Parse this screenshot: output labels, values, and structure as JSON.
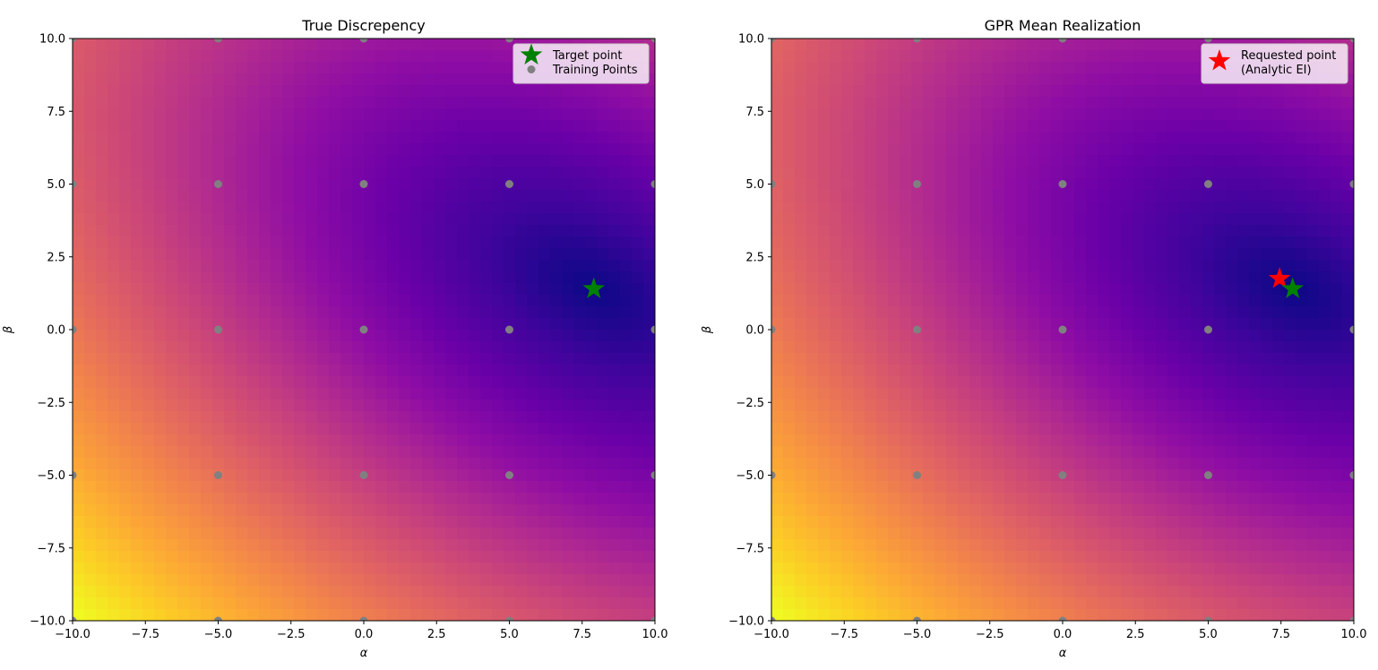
{
  "chart_data": [
    {
      "type": "heatmap",
      "title": "True Discrepency",
      "xlabel": "α",
      "ylabel": "β",
      "xlim": [
        -10,
        10
      ],
      "ylim": [
        -10,
        10
      ],
      "xticks": [
        "−10.0",
        "−7.5",
        "−5.0",
        "−2.5",
        "0.0",
        "2.5",
        "5.0",
        "7.5",
        "10.0"
      ],
      "yticks": [
        "−10.0",
        "−7.5",
        "−5.0",
        "−2.5",
        "0.0",
        "2.5",
        "5.0",
        "7.5",
        "10.0"
      ],
      "colormap": "plasma",
      "grid": false,
      "legend_placement": "upper-right",
      "series": [
        {
          "name": "Target point",
          "marker": "star",
          "color": "#008000",
          "points": [
            [
              7.9,
              1.4
            ]
          ]
        },
        {
          "name": "Training Points",
          "marker": "circle",
          "color": "#808080",
          "points": [
            [
              -10,
              10
            ],
            [
              -5,
              10
            ],
            [
              0,
              10
            ],
            [
              5,
              10
            ],
            [
              10,
              10
            ],
            [
              -10,
              5
            ],
            [
              -5,
              5
            ],
            [
              0,
              5
            ],
            [
              5,
              5
            ],
            [
              10,
              5
            ],
            [
              -10,
              0
            ],
            [
              -5,
              0
            ],
            [
              0,
              0
            ],
            [
              5,
              0
            ],
            [
              10,
              0
            ],
            [
              -10,
              -5
            ],
            [
              -5,
              -5
            ],
            [
              0,
              -5
            ],
            [
              5,
              -5
            ],
            [
              10,
              -5
            ],
            [
              -10,
              -10
            ],
            [
              -5,
              -10
            ],
            [
              0,
              -10
            ],
            [
              5,
              -10
            ],
            [
              10,
              -10
            ]
          ]
        }
      ]
    },
    {
      "type": "heatmap",
      "title": "GPR Mean Realization",
      "xlabel": "α",
      "ylabel": "β",
      "xlim": [
        -10,
        10
      ],
      "ylim": [
        -10,
        10
      ],
      "xticks": [
        "−10.0",
        "−7.5",
        "−5.0",
        "−2.5",
        "0.0",
        "2.5",
        "5.0",
        "7.5",
        "10.0"
      ],
      "yticks": [
        "−10.0",
        "−7.5",
        "−5.0",
        "−2.5",
        "0.0",
        "2.5",
        "5.0",
        "7.5",
        "10.0"
      ],
      "colormap": "plasma",
      "grid": false,
      "legend_placement": "upper-right",
      "series": [
        {
          "name": "Requested point\n(Analytic EI)",
          "marker": "star",
          "color": "#ff0000",
          "points": [
            [
              7.45,
              1.75
            ]
          ]
        },
        {
          "name": "",
          "marker": "star",
          "color": "#008000",
          "points": [
            [
              7.9,
              1.4
            ]
          ]
        },
        {
          "name": "",
          "marker": "circle",
          "color": "#808080",
          "points": [
            [
              -10,
              10
            ],
            [
              -5,
              10
            ],
            [
              0,
              10
            ],
            [
              5,
              10
            ],
            [
              10,
              10
            ],
            [
              -10,
              5
            ],
            [
              -5,
              5
            ],
            [
              0,
              5
            ],
            [
              5,
              5
            ],
            [
              10,
              5
            ],
            [
              -10,
              0
            ],
            [
              -5,
              0
            ],
            [
              0,
              0
            ],
            [
              5,
              0
            ],
            [
              10,
              0
            ],
            [
              -10,
              -5
            ],
            [
              -5,
              -5
            ],
            [
              0,
              -5
            ],
            [
              5,
              -5
            ],
            [
              10,
              -5
            ],
            [
              -10,
              -10
            ],
            [
              -5,
              -10
            ],
            [
              0,
              -10
            ],
            [
              5,
              -10
            ],
            [
              10,
              -10
            ]
          ]
        }
      ]
    }
  ]
}
